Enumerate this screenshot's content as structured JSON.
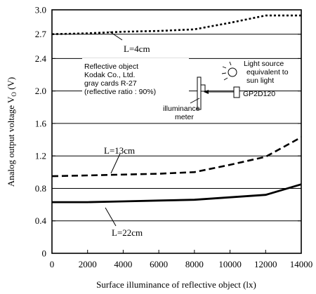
{
  "chart_data": {
    "type": "line",
    "xlabel": "Surface illuminance of reflective object (lx)",
    "ylabel_main": "Analog output voltage V",
    "ylabel_sub": "O",
    "ylabel_unit": " (V)",
    "xlim": [
      0,
      14000
    ],
    "ylim": [
      0,
      3.0
    ],
    "x_ticks": [
      0,
      2000,
      4000,
      6000,
      8000,
      10000,
      12000,
      14000
    ],
    "y_ticks": [
      0,
      0.4,
      0.8,
      1.2,
      1.6,
      2.0,
      2.4,
      2.7,
      3.0
    ],
    "y_tick_labels": [
      "0",
      "0.4",
      "0.8",
      "1.2",
      "1.6",
      "2.0",
      "2.4",
      "2.7",
      "3.0"
    ],
    "grid": "horizontal",
    "series": [
      {
        "name": "L=4cm",
        "style": "dotted",
        "x": [
          0,
          2000,
          4000,
          6000,
          8000,
          10000,
          12000,
          14000
        ],
        "values": [
          2.7,
          2.71,
          2.73,
          2.74,
          2.76,
          2.84,
          2.93,
          2.93
        ]
      },
      {
        "name": "L=13cm",
        "style": "dashed",
        "x": [
          0,
          2000,
          4000,
          6000,
          8000,
          10000,
          12000,
          14000
        ],
        "values": [
          0.95,
          0.96,
          0.97,
          0.98,
          1.0,
          1.09,
          1.19,
          1.43
        ]
      },
      {
        "name": "L=22cm",
        "style": "solid",
        "x": [
          0,
          2000,
          4000,
          6000,
          8000,
          10000,
          12000,
          14000
        ],
        "values": [
          0.63,
          0.63,
          0.64,
          0.65,
          0.66,
          0.69,
          0.72,
          0.85
        ]
      }
    ],
    "inset": {
      "text_lines": [
        "Reflective object",
        "Kodak Co., Ltd.",
        "gray cards R-27",
        "(reflective ratio : 90%)"
      ],
      "meter_label_lines": [
        "illuminance",
        "meter"
      ],
      "light_label_lines": [
        "Light source",
        "equivalent to",
        "sun light"
      ],
      "sensor_label": "GP2D120"
    }
  }
}
